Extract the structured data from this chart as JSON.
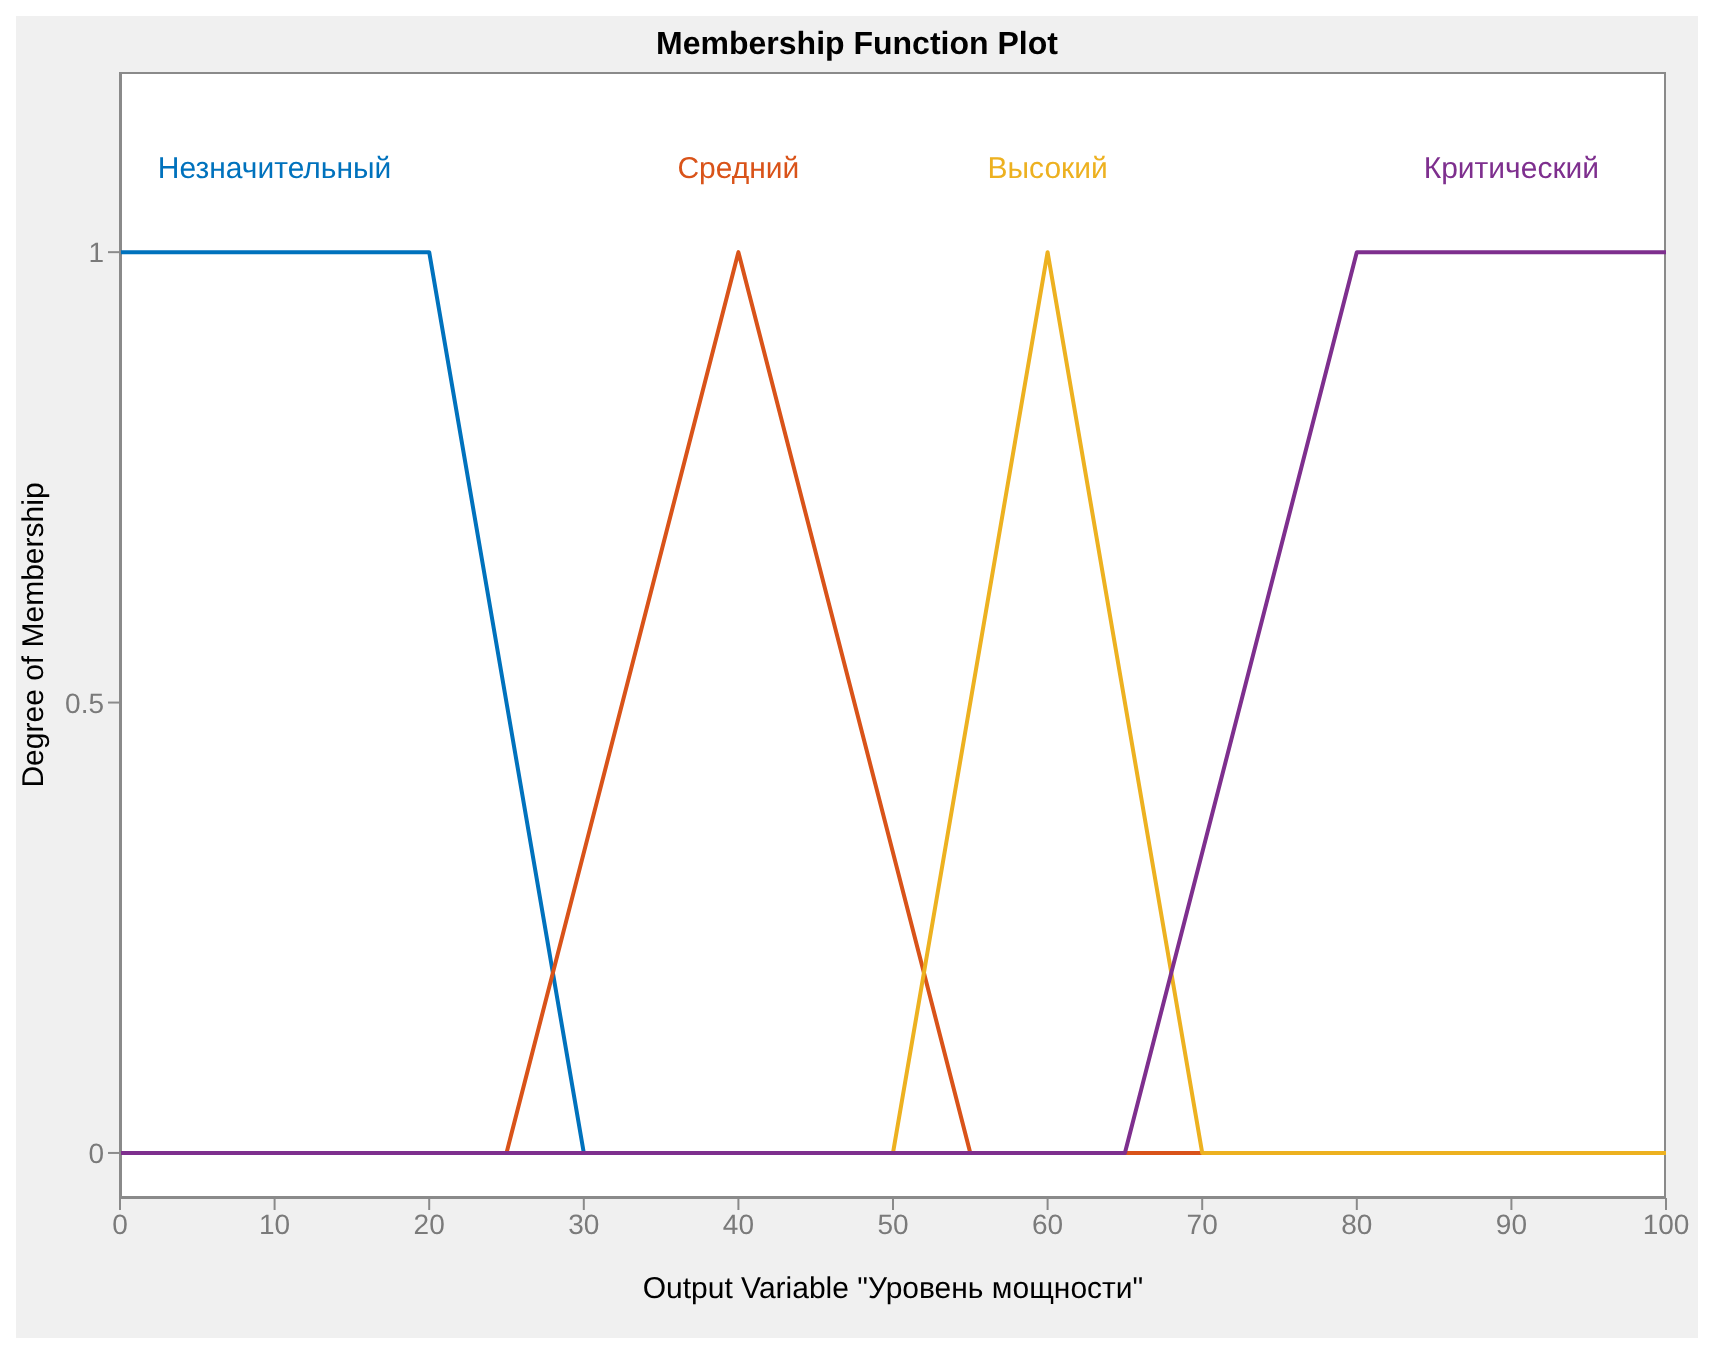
{
  "chart_data": {
    "type": "line",
    "title": "Membership Function Plot",
    "xlabel": "Output Variable \"Уровень мощности\"",
    "ylabel": "Degree of Membership",
    "xlim": [
      0,
      100
    ],
    "xticks": [
      0,
      10,
      20,
      30,
      40,
      50,
      60,
      70,
      80,
      90,
      100
    ],
    "ylim": [
      -0.05,
      1.2
    ],
    "yticks": [
      0,
      0.5,
      1
    ],
    "grid": false,
    "legend": false,
    "marker": "none",
    "line_style": "solid",
    "series": [
      {
        "name": "Незначительный",
        "color": "#0072bd",
        "x": [
          0,
          20,
          30,
          100
        ],
        "values": [
          1,
          1,
          0,
          0
        ]
      },
      {
        "name": "Средний",
        "color": "#d95319",
        "x": [
          0,
          25,
          40,
          55,
          100
        ],
        "values": [
          0,
          0,
          1,
          0,
          0
        ]
      },
      {
        "name": "Высокий",
        "color": "#edb120",
        "x": [
          0,
          50,
          60,
          70,
          100
        ],
        "values": [
          0,
          0,
          1,
          0,
          0
        ]
      },
      {
        "name": "Критический",
        "color": "#7e2f8e",
        "x": [
          0,
          65,
          80,
          100
        ],
        "values": [
          0,
          0,
          1,
          1
        ]
      }
    ]
  }
}
